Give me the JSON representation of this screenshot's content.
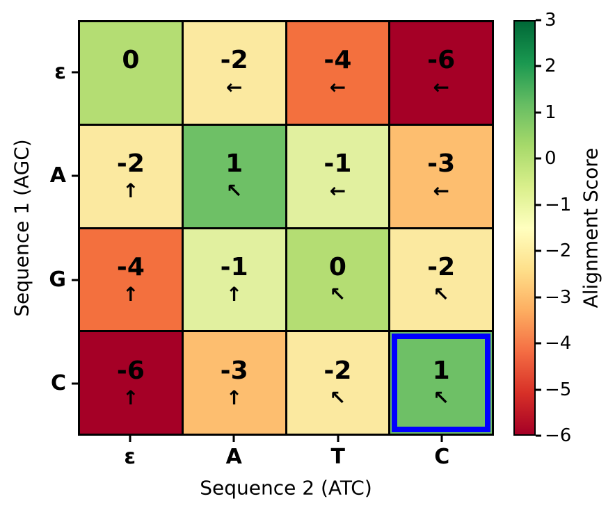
{
  "chart_data": {
    "type": "heatmap",
    "title": "",
    "xlabel": "Sequence 2 (ATC)",
    "ylabel": "Sequence 1 (AGC)",
    "colorbar_label": "Alignment Score",
    "x_categories": [
      "ε",
      "A",
      "T",
      "C"
    ],
    "y_categories": [
      "ε",
      "A",
      "G",
      "C"
    ],
    "values": [
      [
        0,
        -2,
        -4,
        -6
      ],
      [
        -2,
        1,
        -1,
        -3
      ],
      [
        -4,
        -1,
        0,
        -2
      ],
      [
        -6,
        -3,
        -2,
        1
      ]
    ],
    "arrows": [
      [
        "",
        "←",
        "←",
        "←"
      ],
      [
        "↑",
        "↖",
        "←",
        "←"
      ],
      [
        "↑",
        "↑",
        "↖",
        "↖"
      ],
      [
        "↑",
        "↑",
        "↖",
        "↖"
      ]
    ],
    "colormap": "RdYlGn",
    "vmin": -6,
    "vmax": 3,
    "colorbar_tick_values": [
      3,
      2,
      1,
      0,
      -1,
      -2,
      -3,
      -4,
      -5,
      -6
    ],
    "colorbar_tick_labels": [
      "3",
      "2",
      "1",
      "0",
      "−1",
      "−2",
      "−3",
      "−4",
      "−5",
      "−6"
    ],
    "colormap_stops_bottom_to_top": [
      "#a50026",
      "#d73027",
      "#f46d43",
      "#fdae61",
      "#fee08b",
      "#ffffbf",
      "#d9ef8b",
      "#a6d96a",
      "#66bd63",
      "#1a9850",
      "#006837"
    ],
    "value_colors": {
      "1": "#6ec066",
      "0": "#b4dd73",
      "-1": "#e1f09f",
      "-2": "#fbe9a0",
      "-3": "#fdbe6f",
      "-4": "#f3703e",
      "-6": "#a50026"
    },
    "grid_line_color": "#000000",
    "highlighted_cell": {
      "row": "C",
      "col": "C",
      "row_index": 3,
      "col_index": 3,
      "value": 1,
      "border_color": "#0000ff"
    }
  }
}
